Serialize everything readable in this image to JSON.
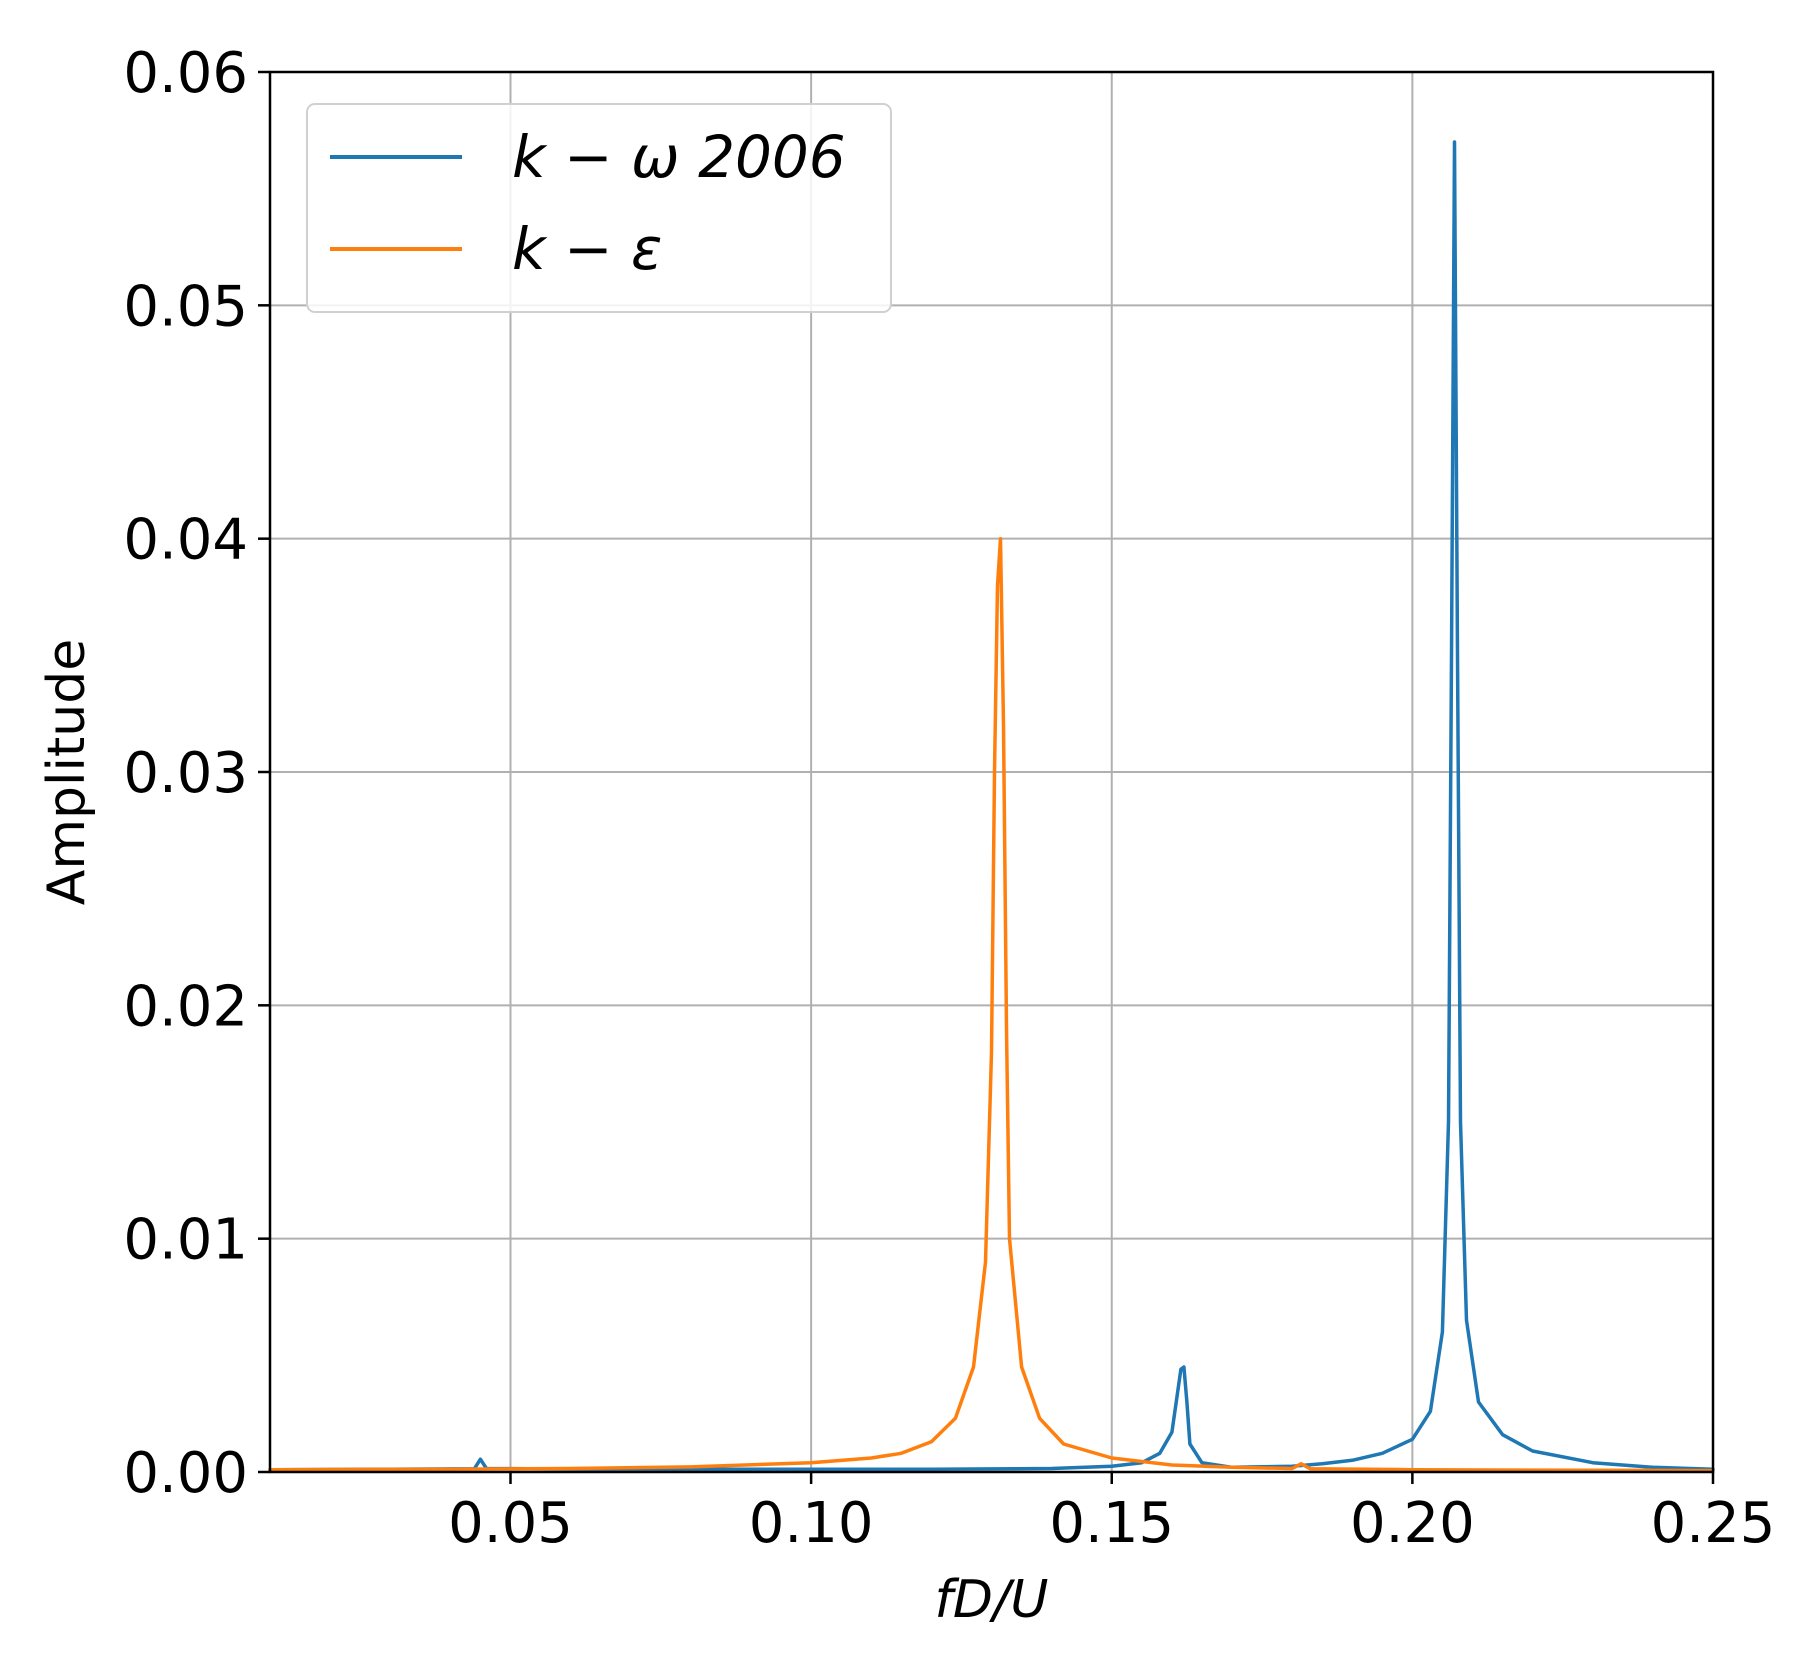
{
  "chart_data": {
    "type": "line",
    "title": "",
    "xlabel": "fD/U",
    "ylabel": "Amplitude",
    "xlim": [
      0.01,
      0.25
    ],
    "ylim": [
      0.0,
      0.06
    ],
    "xticks": [
      0.05,
      0.1,
      0.15,
      0.2,
      0.25
    ],
    "xtick_labels": [
      "0.05",
      "0.10",
      "0.15",
      "0.20",
      "0.25"
    ],
    "yticks": [
      0.0,
      0.01,
      0.02,
      0.03,
      0.04,
      0.05,
      0.06
    ],
    "ytick_labels": [
      "0.00",
      "0.01",
      "0.02",
      "0.03",
      "0.04",
      "0.05",
      "0.06"
    ],
    "grid": true,
    "legend_position": "top-left",
    "series": [
      {
        "name": "k − ω 2006",
        "color": "#1f77b4",
        "points": [
          [
            0.01,
            0.0001
          ],
          [
            0.03,
            0.00012
          ],
          [
            0.044,
            0.00014
          ],
          [
            0.045,
            0.00055
          ],
          [
            0.046,
            0.00015
          ],
          [
            0.06,
            0.00013
          ],
          [
            0.08,
            0.00012
          ],
          [
            0.1,
            0.00012
          ],
          [
            0.12,
            0.00012
          ],
          [
            0.14,
            0.00015
          ],
          [
            0.15,
            0.00025
          ],
          [
            0.155,
            0.0004
          ],
          [
            0.158,
            0.0008
          ],
          [
            0.16,
            0.0017
          ],
          [
            0.161,
            0.0035
          ],
          [
            0.1615,
            0.0044
          ],
          [
            0.162,
            0.0045
          ],
          [
            0.1625,
            0.003
          ],
          [
            0.163,
            0.0012
          ],
          [
            0.165,
            0.0004
          ],
          [
            0.17,
            0.0002
          ],
          [
            0.18,
            0.00025
          ],
          [
            0.185,
            0.00035
          ],
          [
            0.19,
            0.0005
          ],
          [
            0.195,
            0.0008
          ],
          [
            0.2,
            0.0014
          ],
          [
            0.203,
            0.0026
          ],
          [
            0.205,
            0.006
          ],
          [
            0.206,
            0.015
          ],
          [
            0.2065,
            0.035
          ],
          [
            0.207,
            0.057
          ],
          [
            0.2075,
            0.035
          ],
          [
            0.208,
            0.015
          ],
          [
            0.209,
            0.0065
          ],
          [
            0.211,
            0.003
          ],
          [
            0.215,
            0.0016
          ],
          [
            0.22,
            0.0009
          ],
          [
            0.23,
            0.0004
          ],
          [
            0.24,
            0.0002
          ],
          [
            0.25,
            0.00012
          ]
        ]
      },
      {
        "name": "k − ε",
        "color": "#ff7f0e",
        "points": [
          [
            0.01,
            0.0001
          ],
          [
            0.04,
            0.00012
          ],
          [
            0.06,
            0.00015
          ],
          [
            0.08,
            0.00022
          ],
          [
            0.1,
            0.0004
          ],
          [
            0.11,
            0.0006
          ],
          [
            0.115,
            0.0008
          ],
          [
            0.12,
            0.0013
          ],
          [
            0.124,
            0.0023
          ],
          [
            0.127,
            0.0045
          ],
          [
            0.129,
            0.009
          ],
          [
            0.13,
            0.018
          ],
          [
            0.1305,
            0.03
          ],
          [
            0.131,
            0.038
          ],
          [
            0.1315,
            0.04
          ],
          [
            0.132,
            0.032
          ],
          [
            0.1325,
            0.019
          ],
          [
            0.133,
            0.01
          ],
          [
            0.135,
            0.0045
          ],
          [
            0.138,
            0.0023
          ],
          [
            0.142,
            0.0012
          ],
          [
            0.15,
            0.0006
          ],
          [
            0.16,
            0.0003
          ],
          [
            0.17,
            0.0002
          ],
          [
            0.18,
            0.00015
          ],
          [
            0.1815,
            0.00035
          ],
          [
            0.183,
            0.00014
          ],
          [
            0.2,
            0.0001
          ],
          [
            0.22,
            8e-05
          ],
          [
            0.25,
            6e-05
          ]
        ]
      }
    ]
  }
}
